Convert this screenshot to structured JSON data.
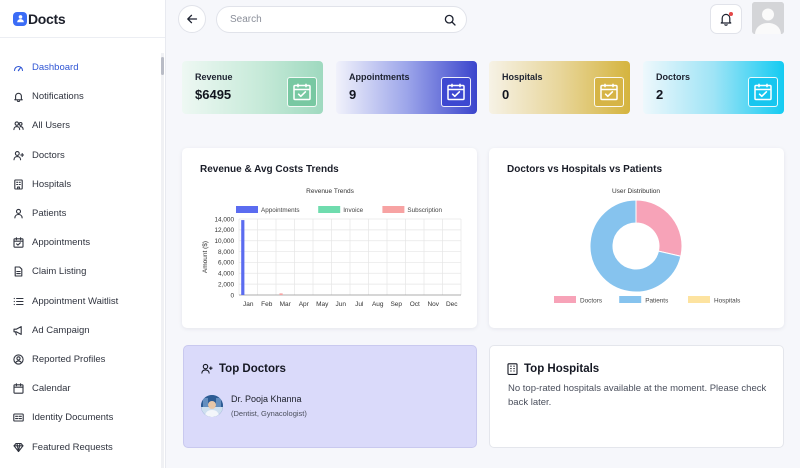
{
  "app": {
    "logo_text": "Docts"
  },
  "sidebar": {
    "items": [
      {
        "label": "Dashboard",
        "icon": "dashboard-icon",
        "active": true
      },
      {
        "label": "Notifications",
        "icon": "bell-icon"
      },
      {
        "label": "All Users",
        "icon": "users-icon"
      },
      {
        "label": "Doctors",
        "icon": "user-plus-icon"
      },
      {
        "label": "Hospitals",
        "icon": "building-icon"
      },
      {
        "label": "Patients",
        "icon": "user-icon"
      },
      {
        "label": "Appointments",
        "icon": "calendar-check-icon"
      },
      {
        "label": "Claim Listing",
        "icon": "document-icon"
      },
      {
        "label": "Appointment Waitlist",
        "icon": "list-icon"
      },
      {
        "label": "Ad Campaign",
        "icon": "megaphone-icon"
      },
      {
        "label": "Reported Profiles",
        "icon": "user-circle-icon"
      },
      {
        "label": "Calendar",
        "icon": "calendar-icon"
      },
      {
        "label": "Identity Documents",
        "icon": "id-card-icon"
      },
      {
        "label": "Featured Requests",
        "icon": "diamond-icon"
      }
    ]
  },
  "header": {
    "search_placeholder": "Search"
  },
  "stats": [
    {
      "label": "Revenue",
      "value": "$6495",
      "icon": "calendar-check-icon"
    },
    {
      "label": "Appointments",
      "value": "9",
      "icon": "calendar-check-icon"
    },
    {
      "label": "Hospitals",
      "value": "0",
      "icon": "calendar-check-icon"
    },
    {
      "label": "Doctors",
      "value": "2",
      "icon": "calendar-check-icon"
    }
  ],
  "revenue_panel": {
    "title": "Revenue & Avg Costs Trends"
  },
  "distribution_panel": {
    "title": "Doctors vs Hospitals vs Patients"
  },
  "chart_data": [
    {
      "type": "bar",
      "title": "Revenue Trends",
      "xlabel": "",
      "ylabel": "Amount ($)",
      "categories": [
        "Jan",
        "Feb",
        "Mar",
        "Apr",
        "May",
        "Jun",
        "Jul",
        "Aug",
        "Sep",
        "Oct",
        "Nov",
        "Dec"
      ],
      "series": [
        {
          "name": "Appointments",
          "color": "#5b6cf0",
          "values": [
            13800,
            0,
            0,
            0,
            0,
            0,
            0,
            0,
            0,
            0,
            0,
            0
          ]
        },
        {
          "name": "Invoice",
          "color": "#6fdcae",
          "values": [
            0,
            0,
            0,
            0,
            0,
            0,
            0,
            0,
            0,
            0,
            0,
            0
          ]
        },
        {
          "name": "Subscription",
          "color": "#f7a3a3",
          "values": [
            0,
            300,
            0,
            0,
            0,
            0,
            0,
            0,
            0,
            0,
            0,
            0
          ]
        }
      ],
      "yticks": [
        "14,000",
        "12,000",
        "10,000",
        "8,000",
        "6,000",
        "4,000",
        "2,000",
        "0"
      ],
      "ylim": [
        0,
        14000
      ],
      "grid": true,
      "legend": "top"
    },
    {
      "type": "pie",
      "title": "User Distribution",
      "labels": [
        "Doctors",
        "Patients",
        "Hospitals"
      ],
      "colors": [
        "#f7a3b8",
        "#86c3ee",
        "#fde3a0"
      ],
      "values": [
        2,
        5,
        0
      ],
      "legend": "bottom"
    }
  ],
  "top_doctors": {
    "title": "Top Doctors",
    "items": [
      {
        "name": "Dr. Pooja Khanna",
        "specialty": "(Dentist, Gynacologist)"
      }
    ]
  },
  "top_hospitals": {
    "title": "Top Hospitals",
    "empty_message": "No top-rated hospitals available at the moment. Please check back later."
  }
}
